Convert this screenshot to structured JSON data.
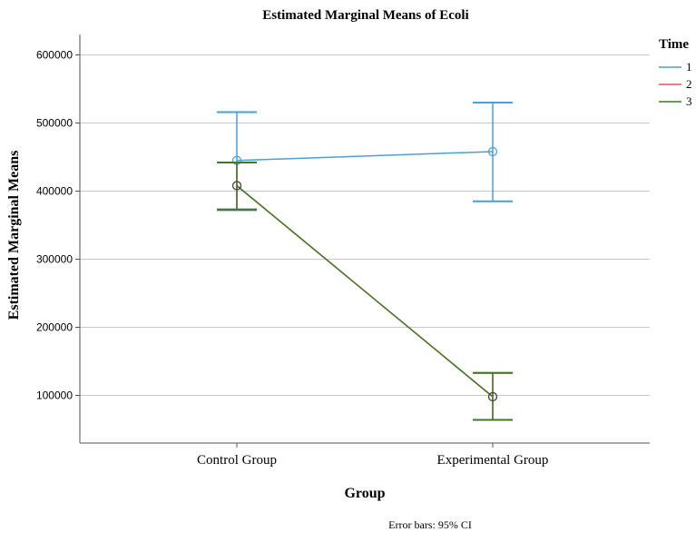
{
  "chart_data": {
    "type": "line",
    "title": "Estimated Marginal Means of Ecoli",
    "xlabel": "Group",
    "ylabel": "Estimated Marginal Means",
    "categories": [
      "Control Group",
      "Experimental Group"
    ],
    "ylim": [
      30000,
      630000
    ],
    "yticks": [
      100000,
      200000,
      300000,
      400000,
      500000,
      600000
    ],
    "grid": "horizontal",
    "legend": {
      "title": "Time",
      "placement": "top-right"
    },
    "series": [
      {
        "name": "1",
        "color": "#4a9fd4",
        "values": [
          445000,
          458000
        ],
        "ci_low": [
          372000,
          385000
        ],
        "ci_high": [
          516000,
          530000
        ]
      },
      {
        "name": "2",
        "color": "#e8505b",
        "values": [
          408000,
          98000
        ],
        "ci_low": [
          373000,
          64000
        ],
        "ci_high": [
          442000,
          133000
        ]
      },
      {
        "name": "3",
        "color": "#3f7a23",
        "values": [
          408000,
          98000
        ],
        "ci_low": [
          373000,
          64000
        ],
        "ci_high": [
          442000,
          133000
        ]
      }
    ],
    "footnote": "Error bars: 95% CI"
  }
}
